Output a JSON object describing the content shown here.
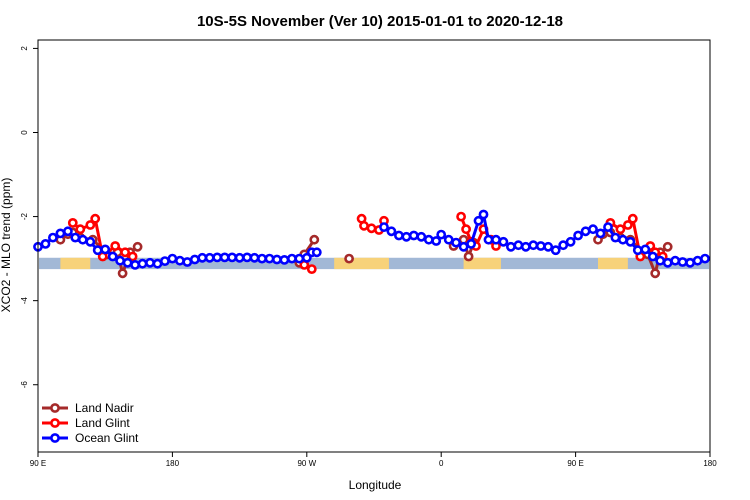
{
  "chart_data": {
    "type": "line",
    "title": "10S-5S November (Ver 10)   2015-01-01 to 2020-12-18",
    "xlabel": "Longitude",
    "ylabel": "XCO2 - MLO trend (ppm)",
    "xlim": [
      -90,
      180
    ],
    "ylim": [
      -7.6,
      2.2
    ],
    "x_ticks": [
      {
        "value": -90,
        "label": "90 E"
      },
      {
        "value": -36,
        "label": "180"
      },
      {
        "value": 18,
        "label": "90 W"
      },
      {
        "value": 72,
        "label": "0"
      },
      {
        "value": 126,
        "label": "90 E"
      },
      {
        "value": 180,
        "label": "180"
      }
    ],
    "y_ticks": [
      {
        "value": 2,
        "label": "2"
      },
      {
        "value": 0,
        "label": "0"
      },
      {
        "value": -2,
        "label": "-2"
      },
      {
        "value": -4,
        "label": "-4"
      },
      {
        "value": -6,
        "label": "-6"
      }
    ],
    "band": {
      "y_range": [
        -3.25,
        -2.98
      ],
      "ocean_color": "#a2b8d6",
      "land_color": "#f7d27a",
      "land_ranges": [
        [
          -81,
          -69
        ],
        [
          29,
          51
        ],
        [
          81,
          96
        ],
        [
          135,
          147
        ]
      ]
    },
    "series": [
      {
        "name": "Land Nadir",
        "color": "#a52a2a",
        "segments": [
          [
            [
              -81,
              -2.55
            ],
            [
              -78,
              -2.42
            ],
            [
              -76,
              -2.38
            ],
            [
              -73,
              -2.5
            ],
            [
              -68,
              -2.55
            ],
            [
              -62,
              -2.9
            ],
            [
              -58,
              -2.85
            ],
            [
              -56,
              -3.35
            ],
            [
              -53,
              -2.85
            ],
            [
              -50,
              -2.72
            ]
          ],
          [
            [
              15,
              -3.1
            ],
            [
              17,
              -2.9
            ],
            [
              21,
              -2.55
            ]
          ],
          [
            [
              35,
              -3.0
            ]
          ],
          [
            [
              77,
              -2.7
            ],
            [
              81,
              -2.55
            ],
            [
              83,
              -2.95
            ],
            [
              85,
              -2.62
            ]
          ],
          [
            [
              135,
              -2.55
            ],
            [
              137,
              -2.42
            ],
            [
              140,
              -2.38
            ],
            [
              144,
              -2.5
            ],
            [
              148,
              -2.55
            ],
            [
              153,
              -2.85
            ],
            [
              155,
              -2.9
            ],
            [
              158,
              -3.35
            ],
            [
              160,
              -2.85
            ],
            [
              163,
              -2.72
            ]
          ]
        ]
      },
      {
        "name": "Land Glint",
        "color": "#ff0000",
        "segments": [
          [
            [
              -76,
              -2.15
            ],
            [
              -73,
              -2.3
            ],
            [
              -69,
              -2.2
            ],
            [
              -67,
              -2.05
            ],
            [
              -64,
              -2.95
            ],
            [
              -59,
              -2.7
            ],
            [
              -55,
              -2.85
            ],
            [
              -52,
              -2.95
            ]
          ],
          [
            [
              17,
              -3.15
            ],
            [
              20,
              -3.25
            ]
          ],
          [
            [
              40,
              -2.05
            ],
            [
              41,
              -2.22
            ],
            [
              44,
              -2.28
            ],
            [
              47,
              -2.32
            ],
            [
              49,
              -2.1
            ]
          ],
          [
            [
              80,
              -2.0
            ],
            [
              82,
              -2.3
            ],
            [
              84,
              -2.6
            ],
            [
              86,
              -2.7
            ],
            [
              89,
              -2.3
            ],
            [
              92,
              -2.55
            ],
            [
              94,
              -2.7
            ]
          ],
          [
            [
              140,
              -2.15
            ],
            [
              144,
              -2.3
            ],
            [
              147,
              -2.2
            ],
            [
              149,
              -2.05
            ],
            [
              152,
              -2.95
            ],
            [
              156,
              -2.7
            ],
            [
              158,
              -2.85
            ],
            [
              161,
              -2.95
            ]
          ]
        ]
      },
      {
        "name": "Ocean Glint",
        "color": "#0000ff",
        "segments": [
          [
            [
              -90,
              -2.72
            ],
            [
              -87,
              -2.65
            ],
            [
              -84,
              -2.5
            ],
            [
              -81,
              -2.4
            ],
            [
              -78,
              -2.35
            ],
            [
              -75,
              -2.5
            ],
            [
              -72,
              -2.55
            ],
            [
              -69,
              -2.6
            ],
            [
              -66,
              -2.8
            ],
            [
              -63,
              -2.78
            ],
            [
              -60,
              -2.95
            ],
            [
              -57,
              -3.05
            ],
            [
              -54,
              -3.1
            ],
            [
              -51,
              -3.15
            ],
            [
              -48,
              -3.12
            ],
            [
              -45,
              -3.1
            ],
            [
              -42,
              -3.12
            ],
            [
              -39,
              -3.06
            ],
            [
              -36,
              -3.0
            ],
            [
              -33,
              -3.05
            ],
            [
              -30,
              -3.08
            ],
            [
              -27,
              -3.02
            ],
            [
              -24,
              -2.98
            ],
            [
              -21,
              -2.98
            ],
            [
              -18,
              -2.97
            ],
            [
              -15,
              -2.97
            ],
            [
              -12,
              -2.97
            ],
            [
              -9,
              -2.98
            ],
            [
              -6,
              -2.97
            ],
            [
              -3,
              -2.98
            ],
            [
              0,
              -3.0
            ],
            [
              3,
              -3.0
            ],
            [
              6,
              -3.02
            ],
            [
              9,
              -3.03
            ],
            [
              12,
              -3.0
            ],
            [
              15,
              -3.0
            ],
            [
              18,
              -2.98
            ],
            [
              20,
              -2.85
            ],
            [
              22,
              -2.85
            ]
          ],
          [
            [
              49,
              -2.25
            ],
            [
              52,
              -2.35
            ],
            [
              55,
              -2.45
            ],
            [
              58,
              -2.48
            ],
            [
              61,
              -2.45
            ],
            [
              64,
              -2.48
            ],
            [
              67,
              -2.55
            ],
            [
              70,
              -2.58
            ],
            [
              72,
              -2.43
            ],
            [
              75,
              -2.55
            ],
            [
              78,
              -2.62
            ],
            [
              81,
              -2.72
            ],
            [
              84,
              -2.65
            ],
            [
              87,
              -2.1
            ],
            [
              89,
              -1.95
            ],
            [
              91,
              -2.55
            ],
            [
              94,
              -2.55
            ],
            [
              97,
              -2.6
            ],
            [
              100,
              -2.72
            ],
            [
              103,
              -2.68
            ],
            [
              106,
              -2.72
            ],
            [
              109,
              -2.68
            ],
            [
              112,
              -2.7
            ],
            [
              115,
              -2.72
            ],
            [
              118,
              -2.8
            ],
            [
              121,
              -2.68
            ],
            [
              124,
              -2.6
            ],
            [
              127,
              -2.45
            ],
            [
              130,
              -2.35
            ],
            [
              133,
              -2.3
            ],
            [
              136,
              -2.4
            ],
            [
              139,
              -2.25
            ],
            [
              142,
              -2.5
            ],
            [
              145,
              -2.55
            ],
            [
              148,
              -2.6
            ],
            [
              151,
              -2.8
            ],
            [
              154,
              -2.78
            ],
            [
              157,
              -2.95
            ],
            [
              160,
              -3.05
            ],
            [
              163,
              -3.1
            ],
            [
              166,
              -3.05
            ],
            [
              169,
              -3.08
            ],
            [
              172,
              -3.1
            ],
            [
              175,
              -3.05
            ],
            [
              178,
              -3.0
            ]
          ]
        ]
      }
    ],
    "legend_position": "bottom-left"
  }
}
